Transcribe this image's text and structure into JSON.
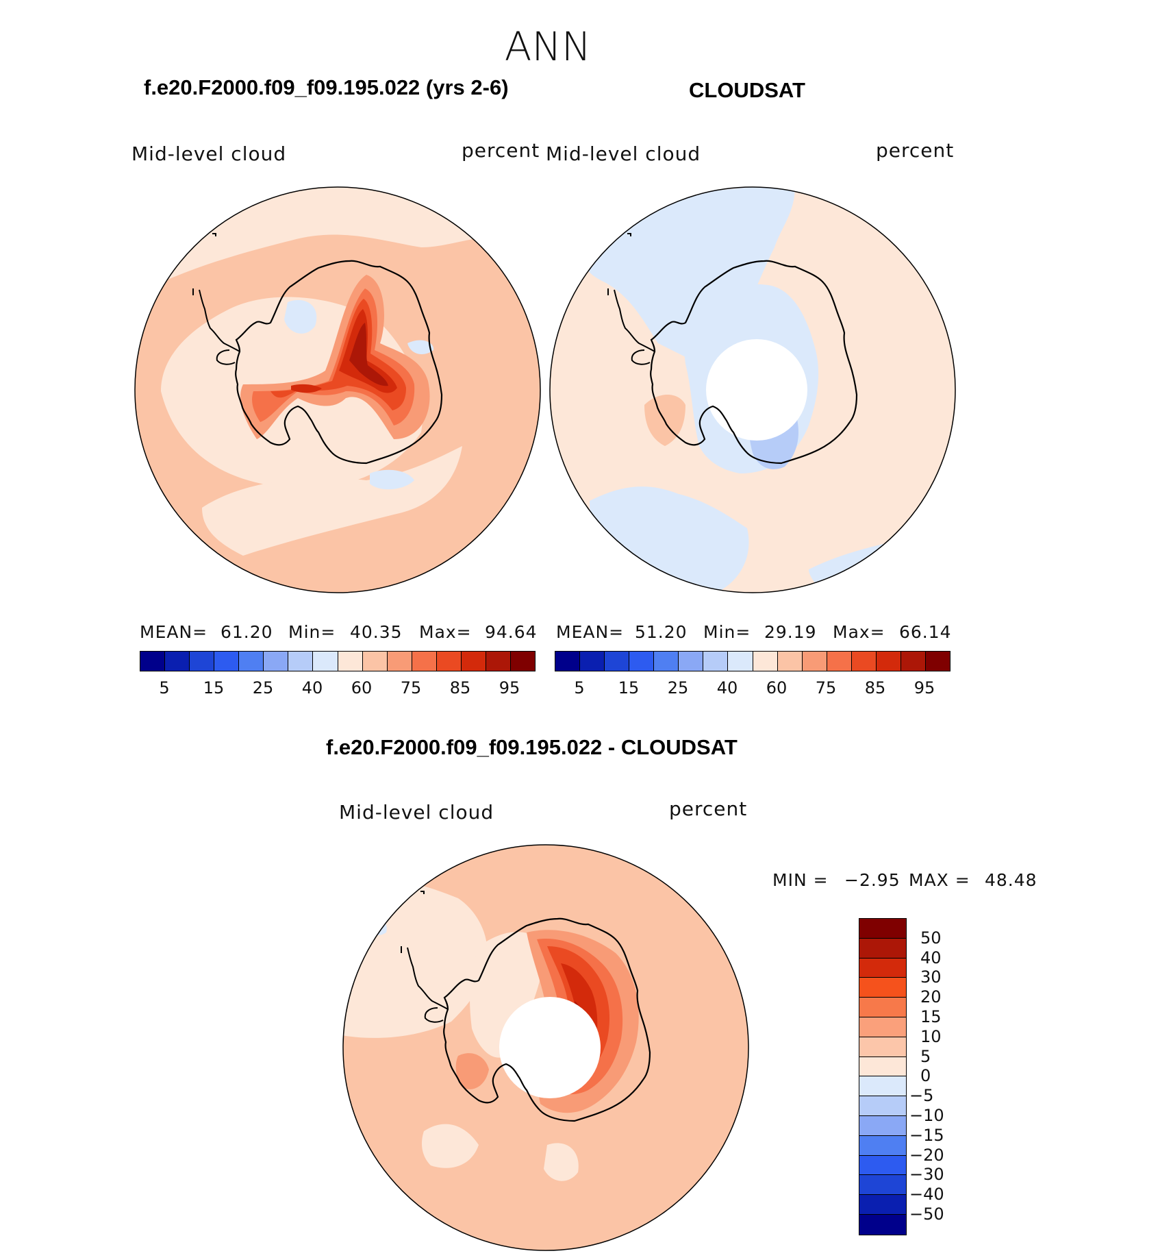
{
  "figure": {
    "season": "ANN",
    "panel_left_title": "f.e20.F2000.f09_f09.195.022 (yrs 2-6)",
    "panel_right_title": "CLOUDSAT",
    "panel_diff_title": "f.e20.F2000.f09_f09.195.022 - CLOUDSAT"
  },
  "panels": {
    "left": {
      "variable": "Mid-level cloud",
      "units": "percent",
      "mean_label": "MEAN=",
      "mean": "61.20",
      "min_label": "Min=",
      "min": "40.35",
      "max_label": "Max=",
      "max": "94.64"
    },
    "right": {
      "variable": "Mid-level cloud",
      "units": "percent",
      "mean_label": "MEAN=",
      "mean": "51.20",
      "min_label": "Min=",
      "min": "29.19",
      "max_label": "Max=",
      "max": "66.14"
    },
    "diff": {
      "variable": "Mid-level cloud",
      "units": "percent",
      "min_label": "MIN =",
      "min": "−2.95",
      "max_label": "MAX =",
      "max": "48.48"
    }
  },
  "colorbars": {
    "abs_colors": [
      "#00008b",
      "#0a1fb0",
      "#1e45d6",
      "#2d5bf0",
      "#4f7ff2",
      "#8aa8f5",
      "#b6ccf8",
      "#dbe9fb",
      "#fde7d8",
      "#fbc4a6",
      "#f89b76",
      "#f57149",
      "#ea4a22",
      "#d32a0b",
      "#ac1707",
      "#7f0000"
    ],
    "abs_ticks": [
      "5",
      "15",
      "25",
      "40",
      "60",
      "75",
      "85",
      "95"
    ],
    "diff_colors": [
      "#7f0000",
      "#ac1707",
      "#d32a0b",
      "#f5521c",
      "#f7794a",
      "#faa07b",
      "#fcc6aa",
      "#fde7d8",
      "#dbe9fb",
      "#b6ccf8",
      "#8aa8f5",
      "#4f7ff2",
      "#2d5bf0",
      "#1e45d6",
      "#0a1fb0",
      "#00008b"
    ],
    "diff_ticks": [
      "50",
      "40",
      "30",
      "20",
      "15",
      "10",
      "5",
      "0",
      "−5",
      "−10",
      "−15",
      "−20",
      "−30",
      "−40",
      "−50"
    ]
  },
  "map_colors": {
    "c0": "#fde7d8",
    "c1": "#fbc4a6",
    "c2": "#f89b76",
    "c3": "#f57149",
    "c4": "#ea4a22",
    "c5": "#d32a0b",
    "c6": "#ac1707",
    "b1": "#dbe9fb",
    "b2": "#b6ccf8",
    "b3": "#8aa8f5"
  }
}
